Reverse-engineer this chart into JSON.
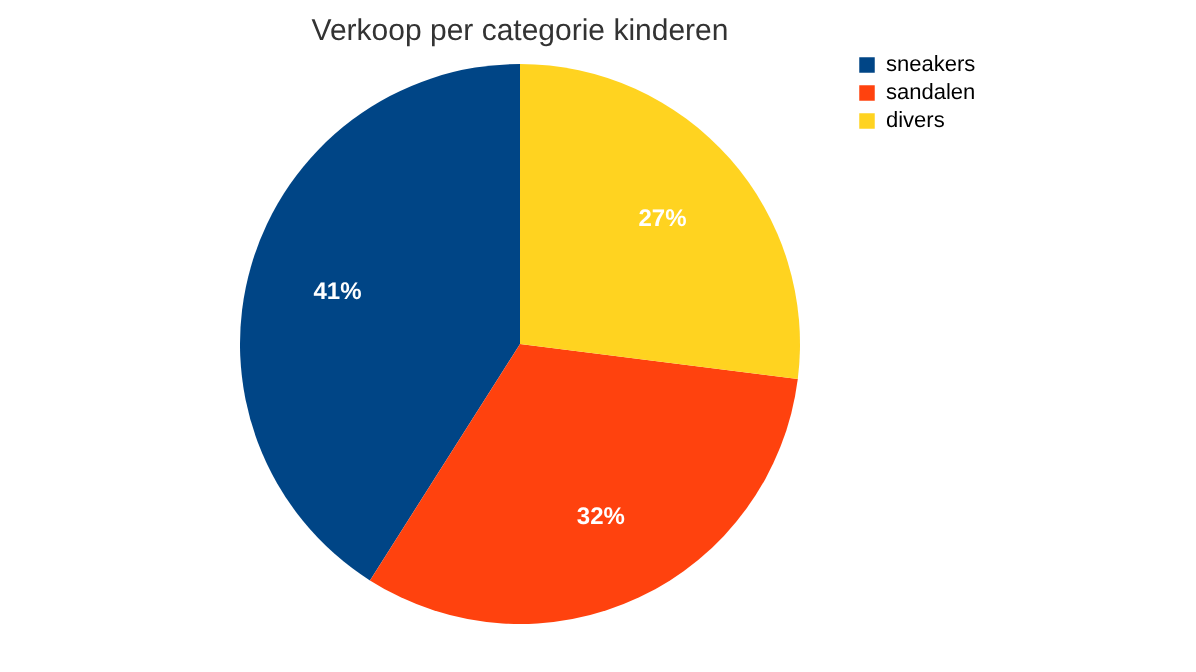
{
  "chart_data": {
    "type": "pie",
    "title": "Verkoop per categorie kinderen",
    "categories": [
      "sneakers",
      "sandalen",
      "divers"
    ],
    "values": [
      41,
      32,
      27
    ],
    "colors": [
      "#004586",
      "#ff420e",
      "#ffd320"
    ],
    "value_labels": [
      "41%",
      "32%",
      "27%"
    ],
    "legend": "right"
  }
}
